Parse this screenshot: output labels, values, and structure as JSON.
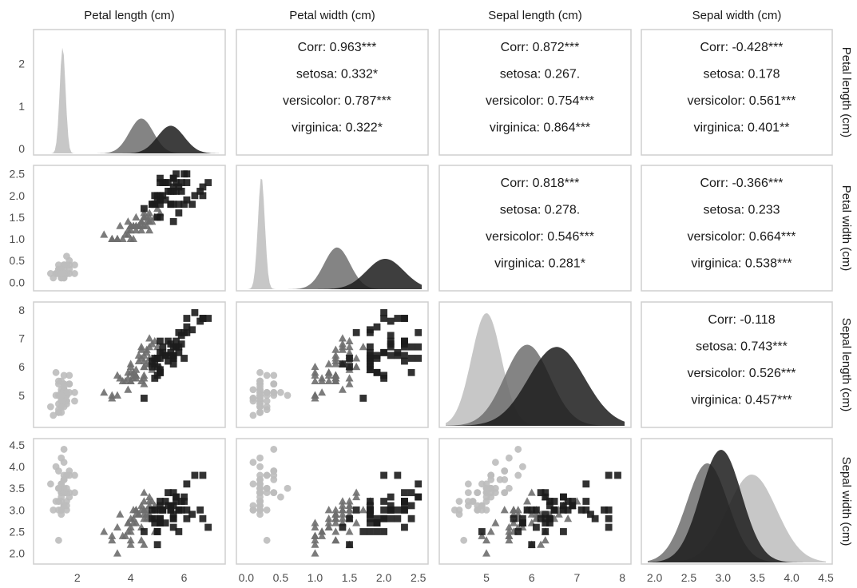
{
  "chart_data": {
    "type": "scatter",
    "variables": [
      "Petal length (cm)",
      "Petal width (cm)",
      "Sepal length (cm)",
      "Sepal width (cm)"
    ],
    "species": [
      "setosa",
      "versicolor",
      "virginica"
    ],
    "colors": {
      "setosa": "#bdbdbd",
      "versicolor": "#6e6e6e",
      "virginica": "#1c1c1c"
    },
    "markers": {
      "setosa": "circle",
      "versicolor": "triangle",
      "virginica": "square"
    },
    "axis_ranges": [
      [
        0.6,
        7.3
      ],
      [
        -0.05,
        2.55
      ],
      [
        4.1,
        8.05
      ],
      [
        1.9,
        4.5
      ]
    ],
    "x_ticks": [
      [
        "2",
        "4",
        "6"
      ],
      [
        "0.0",
        "0.5",
        "1.0",
        "1.5",
        "2.0",
        "2.5"
      ],
      [
        "5",
        "6",
        "7",
        "8"
      ],
      [
        "2.0",
        "2.5",
        "3.0",
        "3.5",
        "4.0",
        "4.5"
      ]
    ],
    "y_ticks": [
      [
        "0",
        "1",
        "2"
      ],
      [
        "0.0",
        "0.5",
        "1.0",
        "1.5",
        "2.0",
        "2.5"
      ],
      [
        "5",
        "6",
        "7",
        "8"
      ],
      [
        "2.0",
        "2.5",
        "3.0",
        "3.5",
        "4.0",
        "4.5"
      ]
    ],
    "density_ymax": 2.65,
    "densities": [
      {
        "variable": "Petal length (cm)",
        "series": [
          {
            "name": "setosa",
            "peak_x": 1.45,
            "sd": 0.11,
            "peak": 2.5
          },
          {
            "name": "versicolor",
            "peak_x": 4.4,
            "sd": 0.45,
            "peak": 0.82
          },
          {
            "name": "virginica",
            "peak_x": 5.5,
            "sd": 0.5,
            "peak": 0.65
          }
        ]
      },
      {
        "variable": "Petal width (cm)",
        "series": [
          {
            "name": "setosa",
            "peak_x": 0.22,
            "sd": 0.05,
            "peak": 1.0
          },
          {
            "name": "versicolor",
            "peak_x": 1.32,
            "sd": 0.19,
            "peak": 0.37
          },
          {
            "name": "virginica",
            "peak_x": 2.02,
            "sd": 0.27,
            "peak": 0.27
          }
        ]
      },
      {
        "variable": "Sepal length (cm)",
        "series": [
          {
            "name": "setosa",
            "peak_x": 5.0,
            "sd": 0.33,
            "peak": 1.0
          },
          {
            "name": "versicolor",
            "peak_x": 5.9,
            "sd": 0.5,
            "peak": 0.72
          },
          {
            "name": "virginica",
            "peak_x": 6.55,
            "sd": 0.62,
            "peak": 0.7
          }
        ]
      },
      {
        "variable": "Sepal width (cm)",
        "series": [
          {
            "name": "setosa",
            "peak_x": 3.42,
            "sd": 0.36,
            "peak": 0.78
          },
          {
            "name": "versicolor",
            "peak_x": 2.77,
            "sd": 0.3,
            "peak": 0.88
          },
          {
            "name": "virginica",
            "peak_x": 2.97,
            "sd": 0.3,
            "peak": 1.0
          }
        ]
      }
    ],
    "correlations": [
      {
        "row": 0,
        "col": 1,
        "lines": [
          "Corr: 0.963***",
          "setosa: 0.332*",
          "versicolor: 0.787***",
          "virginica: 0.322*"
        ]
      },
      {
        "row": 0,
        "col": 2,
        "lines": [
          "Corr: 0.872***",
          "setosa: 0.267.",
          "versicolor: 0.754***",
          "virginica: 0.864***"
        ]
      },
      {
        "row": 0,
        "col": 3,
        "lines": [
          "Corr: -0.428***",
          "setosa: 0.178",
          "versicolor: 0.561***",
          "virginica: 0.401**"
        ]
      },
      {
        "row": 1,
        "col": 2,
        "lines": [
          "Corr: 0.818***",
          "setosa: 0.278.",
          "versicolor: 0.546***",
          "virginica: 0.281*"
        ]
      },
      {
        "row": 1,
        "col": 3,
        "lines": [
          "Corr: -0.366***",
          "setosa: 0.233",
          "versicolor: 0.664***",
          "virginica: 0.538***"
        ]
      },
      {
        "row": 2,
        "col": 3,
        "lines": [
          "Corr: -0.118",
          "setosa: 0.743***",
          "versicolor: 0.526***",
          "virginica: 0.457***"
        ]
      }
    ],
    "observations": {
      "setosa": [
        [
          1.4,
          0.2,
          5.1,
          3.5
        ],
        [
          1.4,
          0.2,
          4.9,
          3.0
        ],
        [
          1.3,
          0.2,
          4.7,
          3.2
        ],
        [
          1.5,
          0.2,
          4.6,
          3.1
        ],
        [
          1.4,
          0.2,
          5.0,
          3.6
        ],
        [
          1.7,
          0.4,
          5.4,
          3.9
        ],
        [
          1.4,
          0.3,
          4.6,
          3.4
        ],
        [
          1.5,
          0.2,
          5.0,
          3.4
        ],
        [
          1.4,
          0.2,
          4.4,
          2.9
        ],
        [
          1.5,
          0.1,
          4.9,
          3.1
        ],
        [
          1.5,
          0.2,
          5.4,
          3.7
        ],
        [
          1.6,
          0.2,
          4.8,
          3.4
        ],
        [
          1.4,
          0.1,
          4.8,
          3.0
        ],
        [
          1.1,
          0.1,
          4.3,
          3.0
        ],
        [
          1.2,
          0.2,
          5.8,
          4.0
        ],
        [
          1.5,
          0.4,
          5.7,
          4.4
        ],
        [
          1.3,
          0.4,
          5.4,
          3.9
        ],
        [
          1.4,
          0.3,
          5.1,
          3.5
        ],
        [
          1.7,
          0.3,
          5.7,
          3.8
        ],
        [
          1.5,
          0.3,
          5.1,
          3.8
        ],
        [
          1.7,
          0.2,
          5.4,
          3.4
        ],
        [
          1.5,
          0.4,
          5.1,
          3.7
        ],
        [
          1.0,
          0.2,
          4.6,
          3.6
        ],
        [
          1.7,
          0.5,
          5.1,
          3.3
        ],
        [
          1.9,
          0.2,
          4.8,
          3.4
        ],
        [
          1.6,
          0.2,
          5.0,
          3.0
        ],
        [
          1.6,
          0.4,
          5.0,
          3.4
        ],
        [
          1.5,
          0.2,
          5.2,
          3.5
        ],
        [
          1.4,
          0.2,
          5.2,
          3.4
        ],
        [
          1.6,
          0.2,
          4.7,
          3.2
        ],
        [
          1.6,
          0.2,
          4.8,
          3.1
        ],
        [
          1.5,
          0.4,
          5.4,
          3.4
        ],
        [
          1.5,
          0.1,
          5.2,
          4.1
        ],
        [
          1.4,
          0.2,
          5.5,
          4.2
        ],
        [
          1.5,
          0.2,
          4.9,
          3.1
        ],
        [
          1.2,
          0.2,
          5.0,
          3.2
        ],
        [
          1.3,
          0.2,
          5.5,
          3.5
        ],
        [
          1.4,
          0.1,
          4.9,
          3.6
        ],
        [
          1.3,
          0.2,
          4.4,
          3.0
        ],
        [
          1.5,
          0.2,
          5.1,
          3.4
        ],
        [
          1.3,
          0.3,
          5.0,
          3.5
        ],
        [
          1.3,
          0.3,
          4.5,
          2.3
        ],
        [
          1.3,
          0.2,
          4.4,
          3.2
        ],
        [
          1.6,
          0.6,
          5.0,
          3.5
        ],
        [
          1.9,
          0.4,
          5.1,
          3.8
        ],
        [
          1.4,
          0.3,
          4.8,
          3.0
        ],
        [
          1.6,
          0.2,
          5.1,
          3.8
        ],
        [
          1.4,
          0.2,
          4.6,
          3.2
        ],
        [
          1.5,
          0.2,
          5.3,
          3.7
        ],
        [
          1.4,
          0.2,
          5.0,
          3.3
        ]
      ],
      "versicolor": [
        [
          4.7,
          1.4,
          7.0,
          3.2
        ],
        [
          4.5,
          1.5,
          6.4,
          3.2
        ],
        [
          4.9,
          1.5,
          6.9,
          3.1
        ],
        [
          4.0,
          1.3,
          5.5,
          2.3
        ],
        [
          4.6,
          1.5,
          6.5,
          2.8
        ],
        [
          4.5,
          1.3,
          5.7,
          2.8
        ],
        [
          4.7,
          1.6,
          6.3,
          3.3
        ],
        [
          3.3,
          1.0,
          4.9,
          2.4
        ],
        [
          4.6,
          1.3,
          6.6,
          2.9
        ],
        [
          3.9,
          1.4,
          5.2,
          2.7
        ],
        [
          3.5,
          1.0,
          5.0,
          2.0
        ],
        [
          4.2,
          1.5,
          5.9,
          3.0
        ],
        [
          4.0,
          1.0,
          6.0,
          2.2
        ],
        [
          4.7,
          1.4,
          6.1,
          2.9
        ],
        [
          3.6,
          1.3,
          5.6,
          2.9
        ],
        [
          4.4,
          1.4,
          6.7,
          3.1
        ],
        [
          4.5,
          1.5,
          5.6,
          3.0
        ],
        [
          4.1,
          1.0,
          5.8,
          2.7
        ],
        [
          4.5,
          1.5,
          6.2,
          2.2
        ],
        [
          3.9,
          1.1,
          5.6,
          2.5
        ],
        [
          4.8,
          1.8,
          5.9,
          3.2
        ],
        [
          4.0,
          1.3,
          6.1,
          2.8
        ],
        [
          4.9,
          1.5,
          6.3,
          2.5
        ],
        [
          4.7,
          1.2,
          6.1,
          2.8
        ],
        [
          4.3,
          1.3,
          6.4,
          2.9
        ],
        [
          4.4,
          1.4,
          6.6,
          3.0
        ],
        [
          4.8,
          1.4,
          6.8,
          2.8
        ],
        [
          5.0,
          1.7,
          6.7,
          3.0
        ],
        [
          4.5,
          1.5,
          6.0,
          2.9
        ],
        [
          3.5,
          1.0,
          5.7,
          2.6
        ],
        [
          3.8,
          1.1,
          5.5,
          2.4
        ],
        [
          3.7,
          1.0,
          5.5,
          2.4
        ],
        [
          3.9,
          1.2,
          5.8,
          2.7
        ],
        [
          5.1,
          1.6,
          6.0,
          2.7
        ],
        [
          4.5,
          1.5,
          5.4,
          3.0
        ],
        [
          4.5,
          1.6,
          6.0,
          3.4
        ],
        [
          4.7,
          1.5,
          6.7,
          3.1
        ],
        [
          4.4,
          1.3,
          6.3,
          2.3
        ],
        [
          4.1,
          1.3,
          5.6,
          3.0
        ],
        [
          4.0,
          1.3,
          5.5,
          2.5
        ],
        [
          4.4,
          1.2,
          5.5,
          2.6
        ],
        [
          4.6,
          1.4,
          6.1,
          3.0
        ],
        [
          4.0,
          1.2,
          5.8,
          2.6
        ],
        [
          3.3,
          1.0,
          5.0,
          2.3
        ],
        [
          4.2,
          1.3,
          5.6,
          2.7
        ],
        [
          4.2,
          1.2,
          5.7,
          3.0
        ],
        [
          4.2,
          1.3,
          5.7,
          2.9
        ],
        [
          4.3,
          1.3,
          6.2,
          2.9
        ],
        [
          3.0,
          1.1,
          5.1,
          2.5
        ],
        [
          4.1,
          1.3,
          5.7,
          2.8
        ]
      ],
      "virginica": [
        [
          6.0,
          2.5,
          6.3,
          3.3
        ],
        [
          5.1,
          1.9,
          5.8,
          2.7
        ],
        [
          5.9,
          2.1,
          7.1,
          3.0
        ],
        [
          5.6,
          1.8,
          6.3,
          2.9
        ],
        [
          5.8,
          2.2,
          6.5,
          3.0
        ],
        [
          6.6,
          2.1,
          7.6,
          3.0
        ],
        [
          4.5,
          1.7,
          4.9,
          2.5
        ],
        [
          6.3,
          1.8,
          7.3,
          2.9
        ],
        [
          5.8,
          1.8,
          6.7,
          2.5
        ],
        [
          6.1,
          2.5,
          7.2,
          3.6
        ],
        [
          5.1,
          2.0,
          6.5,
          3.2
        ],
        [
          5.3,
          1.9,
          6.4,
          2.7
        ],
        [
          5.5,
          2.1,
          6.8,
          3.0
        ],
        [
          5.0,
          2.0,
          5.7,
          2.5
        ],
        [
          5.1,
          2.4,
          5.8,
          2.8
        ],
        [
          5.3,
          2.3,
          6.4,
          3.2
        ],
        [
          5.5,
          1.8,
          6.5,
          3.0
        ],
        [
          6.7,
          2.2,
          7.7,
          3.8
        ],
        [
          6.9,
          2.3,
          7.7,
          2.6
        ],
        [
          5.0,
          1.5,
          6.0,
          2.2
        ],
        [
          5.7,
          2.3,
          6.9,
          3.2
        ],
        [
          4.9,
          2.0,
          5.6,
          2.8
        ],
        [
          6.7,
          2.0,
          7.7,
          2.8
        ],
        [
          4.9,
          1.8,
          6.3,
          2.7
        ],
        [
          5.7,
          2.1,
          6.7,
          3.3
        ],
        [
          6.0,
          1.8,
          7.2,
          3.2
        ],
        [
          4.8,
          1.8,
          6.2,
          2.8
        ],
        [
          4.9,
          1.8,
          6.1,
          3.0
        ],
        [
          5.6,
          2.1,
          6.4,
          2.8
        ],
        [
          5.8,
          1.6,
          7.2,
          3.0
        ],
        [
          6.1,
          1.9,
          7.4,
          2.8
        ],
        [
          6.4,
          2.0,
          7.9,
          3.8
        ],
        [
          5.6,
          2.2,
          6.4,
          2.8
        ],
        [
          5.1,
          1.5,
          6.3,
          2.8
        ],
        [
          5.6,
          1.4,
          6.1,
          2.6
        ],
        [
          6.1,
          2.3,
          7.7,
          3.0
        ],
        [
          5.6,
          2.4,
          6.3,
          3.4
        ],
        [
          5.5,
          1.8,
          6.4,
          3.1
        ],
        [
          4.8,
          1.8,
          6.0,
          3.0
        ],
        [
          5.4,
          2.1,
          6.9,
          3.1
        ],
        [
          5.6,
          2.4,
          6.7,
          3.1
        ],
        [
          5.1,
          2.3,
          6.9,
          3.1
        ],
        [
          5.1,
          1.9,
          5.8,
          2.7
        ],
        [
          5.9,
          2.3,
          6.8,
          3.2
        ],
        [
          5.7,
          2.5,
          6.7,
          3.3
        ],
        [
          5.2,
          2.3,
          6.7,
          3.0
        ],
        [
          5.0,
          1.9,
          6.3,
          2.5
        ],
        [
          5.2,
          2.0,
          6.5,
          3.0
        ],
        [
          5.4,
          2.3,
          6.2,
          3.4
        ],
        [
          5.1,
          1.8,
          5.9,
          3.0
        ]
      ]
    }
  }
}
